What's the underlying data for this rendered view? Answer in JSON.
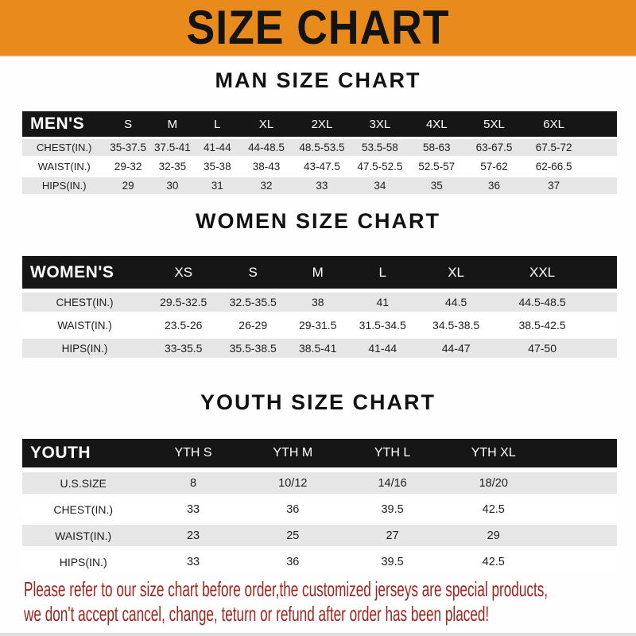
{
  "banner": {
    "title": "SIZE CHART"
  },
  "colors": {
    "banner_bg": "#E98A1D",
    "bar_bg": "#161616",
    "row_alt_bg": "#E6E6E6",
    "footnote_red": "#A0241E"
  },
  "sections": [
    {
      "id": "mens",
      "heading": "MAN SIZE CHART",
      "table": {
        "header_label": "MEN'S",
        "columns": [
          "S",
          "M",
          "L",
          "XL",
          "2XL",
          "3XL",
          "4XL",
          "5XL",
          "6XL"
        ],
        "rows": [
          {
            "label": "CHEST(IN.)",
            "values": [
              "35-37.5",
              "37.5-41",
              "41-44",
              "44-48.5",
              "48.5-53.5",
              "53.5-58",
              "58-63",
              "63-67.5",
              "67.5-72"
            ]
          },
          {
            "label": "WAIST(IN.)",
            "values": [
              "29-32",
              "32-35",
              "35-38",
              "38-43",
              "43-47.5",
              "47.5-52.5",
              "52.5-57",
              "57-62",
              "62-66.5"
            ]
          },
          {
            "label": "HIPS(IN.)",
            "values": [
              "29",
              "30",
              "31",
              "32",
              "33",
              "34",
              "35",
              "36",
              "37"
            ]
          }
        ]
      }
    },
    {
      "id": "womens",
      "heading": "WOMEN SIZE CHART",
      "table": {
        "header_label": "WOMEN'S",
        "columns": [
          "XS",
          "S",
          "M",
          "L",
          "XL",
          "XXL"
        ],
        "rows": [
          {
            "label": "CHEST(IN.)",
            "values": [
              "29.5-32.5",
              "32.5-35.5",
              "38",
              "41",
              "44.5",
              "44.5-48.5"
            ]
          },
          {
            "label": "WAIST(IN.)",
            "values": [
              "23.5-26",
              "26-29",
              "29-31.5",
              "31.5-34.5",
              "34.5-38.5",
              "38.5-42.5"
            ]
          },
          {
            "label": "HIPS(IN.)",
            "values": [
              "33-35.5",
              "35.5-38.5",
              "38.5-41",
              "41-44",
              "44-47",
              "47-50"
            ]
          }
        ]
      }
    },
    {
      "id": "youth",
      "heading": "YOUTH SIZE CHART",
      "table": {
        "header_label": "YOUTH",
        "columns": [
          "YTH S",
          "YTH M",
          "YTH L",
          "YTH XL"
        ],
        "rows": [
          {
            "label": "U.S.SIZE",
            "values": [
              "8",
              "10/12",
              "14/16",
              "18/20"
            ]
          },
          {
            "label": "CHEST(IN.)",
            "values": [
              "33",
              "36",
              "39.5",
              "42.5"
            ]
          },
          {
            "label": "WAIST(IN.)",
            "values": [
              "23",
              "25",
              "27",
              "29"
            ]
          },
          {
            "label": "HIPS(IN.)",
            "values": [
              "33",
              "36",
              "39.5",
              "42.5"
            ]
          }
        ]
      }
    }
  ],
  "footnote": {
    "line1": "Please refer to our size chart before order,the customized jerseys are special products,",
    "line2": "we don't accept cancel, change, teturn or refund after order has been placed!"
  }
}
